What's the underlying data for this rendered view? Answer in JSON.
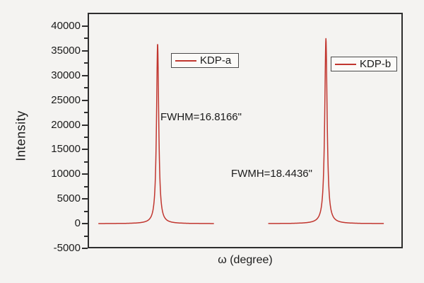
{
  "chart_data": {
    "type": "line",
    "title": "",
    "xlabel": "ω (degree)",
    "ylabel": "Intensity",
    "ylim": [
      -5000,
      40000
    ],
    "y_ticks": [
      40000,
      35000,
      30000,
      25000,
      20000,
      15000,
      10000,
      5000,
      0,
      -5000
    ],
    "y_minor_tick_step": 2500,
    "x_tick_labels_visible": false,
    "grid": false,
    "legend_position": "inside-top",
    "line_color": "#c1362f",
    "frame_color": "#2e2e2e",
    "series": [
      {
        "name": "KDP-a",
        "annotation": "FWHM=16.8166\"",
        "peak_height": 36500,
        "baseline_value": 0,
        "peak_center_frac": 0.222,
        "span_frac": [
          0.034,
          0.401
        ],
        "hwhm_frac": 0.0042
      },
      {
        "name": "KDP-b",
        "annotation": "FWMH=18.4436\"",
        "peak_height": 37500,
        "baseline_value": 0,
        "peak_center_frac": 0.756,
        "span_frac": [
          0.573,
          0.94
        ],
        "hwhm_frac": 0.0046
      }
    ]
  }
}
